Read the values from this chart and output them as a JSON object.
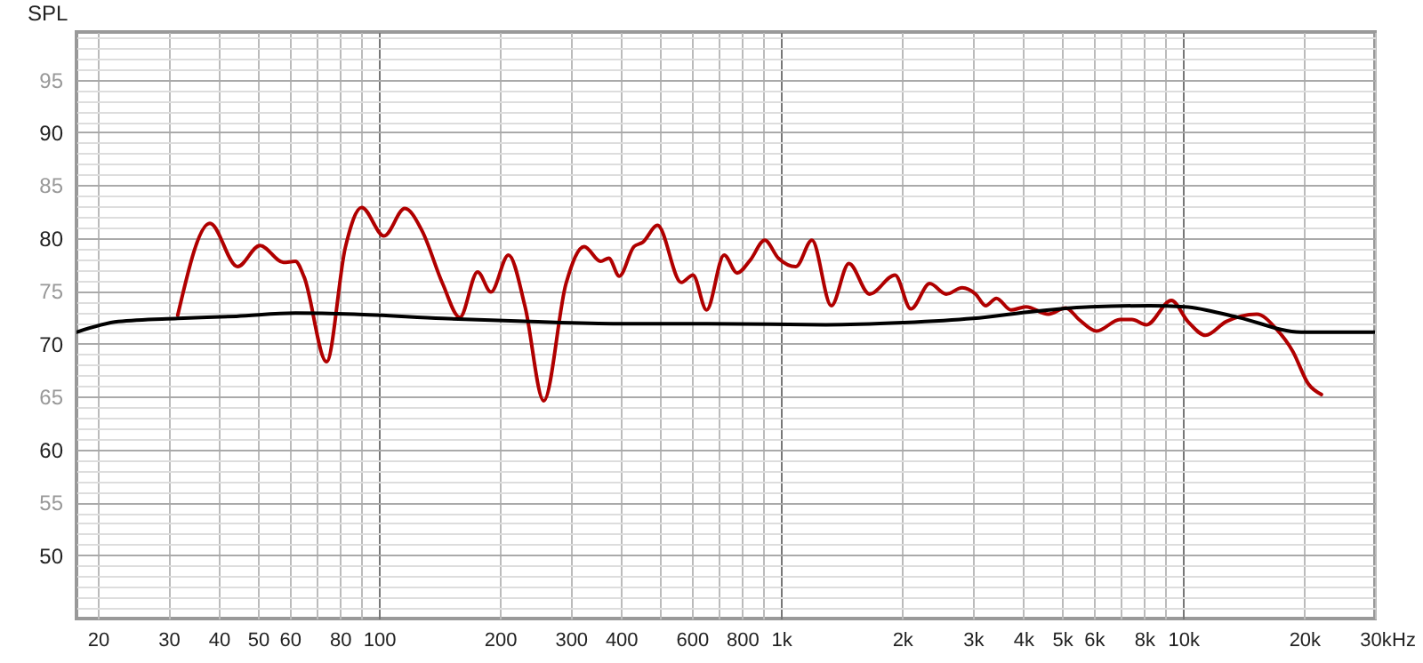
{
  "chart_data": {
    "type": "line",
    "ylabel": "SPL",
    "xlabel": "Hz",
    "log": "x",
    "grid": true,
    "line_style": "solid",
    "xlim": [
      17.7,
      30000
    ],
    "ylim": [
      44,
      99.5
    ],
    "xticks": [
      20,
      30,
      40,
      50,
      60,
      {
        "value": 70,
        "label": null
      },
      80,
      {
        "value": 90,
        "label": null
      },
      100,
      200,
      300,
      400,
      {
        "value": 500,
        "label": null
      },
      600,
      {
        "value": 700,
        "label": null
      },
      800,
      {
        "value": 900,
        "label": null
      },
      {
        "value": 1000,
        "label": "1k"
      },
      {
        "value": 2000,
        "label": "2k"
      },
      {
        "value": 3000,
        "label": "3k"
      },
      {
        "value": 4000,
        "label": "4k"
      },
      {
        "value": 5000,
        "label": "5k"
      },
      {
        "value": 6000,
        "label": "6k"
      },
      {
        "value": 7000,
        "label": null
      },
      {
        "value": 8000,
        "label": "8k"
      },
      {
        "value": 9000,
        "label": null
      },
      {
        "value": 10000,
        "label": "10k"
      },
      {
        "value": 20000,
        "label": "20k"
      },
      {
        "value": 30000,
        "label": "30k"
      }
    ],
    "yticks": [
      {
        "value": 45,
        "label": null
      },
      {
        "value": 46,
        "label": null
      },
      {
        "value": 47,
        "label": null
      },
      {
        "value": 48,
        "label": null
      },
      {
        "value": 49,
        "label": null
      },
      50,
      {
        "value": 51,
        "label": null
      },
      {
        "value": 52,
        "label": null
      },
      {
        "value": 53,
        "label": null
      },
      {
        "value": 54,
        "label": null
      },
      55,
      {
        "value": 56,
        "label": null
      },
      {
        "value": 57,
        "label": null
      },
      {
        "value": 58,
        "label": null
      },
      {
        "value": 59,
        "label": null
      },
      60,
      {
        "value": 61,
        "label": null
      },
      {
        "value": 62,
        "label": null
      },
      {
        "value": 63,
        "label": null
      },
      {
        "value": 64,
        "label": null
      },
      65,
      {
        "value": 66,
        "label": null
      },
      {
        "value": 67,
        "label": null
      },
      {
        "value": 68,
        "label": null
      },
      {
        "value": 69,
        "label": null
      },
      70,
      {
        "value": 71,
        "label": null
      },
      {
        "value": 72,
        "label": null
      },
      {
        "value": 73,
        "label": null
      },
      {
        "value": 74,
        "label": null
      },
      75,
      {
        "value": 76,
        "label": null
      },
      {
        "value": 77,
        "label": null
      },
      {
        "value": 78,
        "label": null
      },
      {
        "value": 79,
        "label": null
      },
      80,
      {
        "value": 81,
        "label": null
      },
      {
        "value": 82,
        "label": null
      },
      {
        "value": 83,
        "label": null
      },
      {
        "value": 84,
        "label": null
      },
      85,
      {
        "value": 86,
        "label": null
      },
      {
        "value": 87,
        "label": null
      },
      {
        "value": 88,
        "label": null
      },
      {
        "value": 89,
        "label": null
      },
      90,
      {
        "value": 91,
        "label": null
      },
      {
        "value": 92,
        "label": null
      },
      {
        "value": 93,
        "label": null
      },
      {
        "value": 94,
        "label": null
      },
      95,
      {
        "value": 96,
        "label": null
      },
      {
        "value": 97,
        "label": null
      },
      {
        "value": 98,
        "label": null
      },
      {
        "value": 99,
        "label": null
      }
    ],
    "series": [
      {
        "color": "#b00000",
        "x": [
          31.6,
          38,
          44.5,
          50.6,
          57.9,
          62,
          65.2,
          74.1,
          82.5,
          90.6,
          103,
          116,
          128,
          144,
          159,
          176,
          190,
          210,
          231,
          257,
          292,
          324,
          356,
          373,
          396,
          431,
          453,
          493,
          565,
          604,
          653,
          722,
          778,
          838,
          911,
          985,
          1089,
          1194,
          1334,
          1475,
          1660,
          1921,
          2104,
          2344,
          2576,
          2821,
          3048,
          3227,
          3432,
          3734,
          4064,
          4623,
          5107,
          5508,
          6090,
          6966,
          7460,
          8111,
          9351,
          10280,
          11370,
          12790,
          15250,
          17050,
          18730,
          20490,
          22080
        ],
        "values": [
          72.7,
          81.4,
          77.3,
          79.3,
          77.7,
          77.8,
          76.3,
          68.3,
          79.1,
          82.9,
          80.2,
          82.8,
          80.7,
          75.7,
          72.5,
          76.8,
          74.9,
          78.4,
          73.5,
          64.6,
          75.7,
          79.2,
          77.8,
          78.1,
          76.4,
          79.2,
          79.6,
          81.2,
          75.8,
          76.5,
          73.2,
          78.4,
          76.7,
          77.9,
          79.8,
          78.1,
          77.3,
          79.8,
          73.6,
          77.6,
          74.7,
          76.5,
          73.3,
          75.7,
          74.7,
          75.3,
          74.7,
          73.6,
          74.3,
          73.2,
          73.5,
          72.8,
          73.4,
          72.3,
          71.2,
          72.3,
          72.3,
          71.8,
          74.1,
          72.1,
          70.8,
          72.1,
          72.8,
          71.4,
          69.3,
          66.2,
          65.2
        ]
      },
      {
        "color": "#000000",
        "x": [
          17.7,
          22.5,
          31.6,
          44.2,
          62,
          86.8,
          144,
          238,
          396,
          656,
          1293,
          2006,
          3000,
          4334,
          5880,
          8244,
          10100,
          13700,
          19660,
          30000
        ],
        "values": [
          71.1,
          72.1,
          72.4,
          72.6,
          72.9,
          72.8,
          72.4,
          72.1,
          71.9,
          71.9,
          71.8,
          72.0,
          72.4,
          73.1,
          73.5,
          73.6,
          73.5,
          72.5,
          71.1,
          71.1
        ]
      }
    ]
  }
}
